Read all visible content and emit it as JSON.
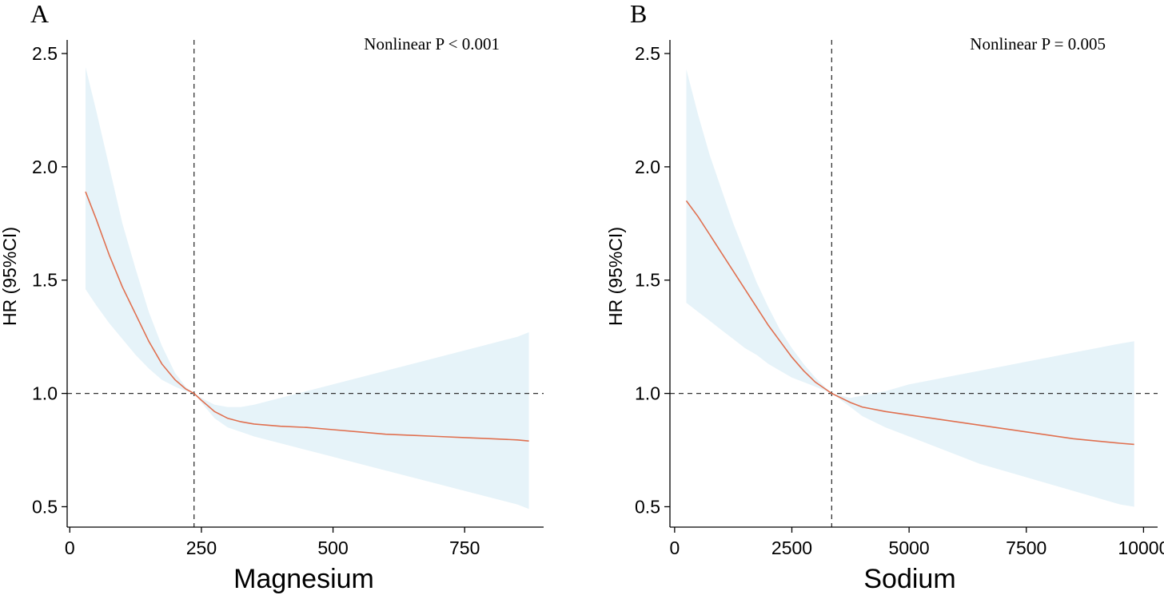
{
  "chart_data": [
    {
      "panel_label": "A",
      "type": "line",
      "annotation": "Nonlinear P < 0.001",
      "xlabel": "Magnesium",
      "ylabel": "HR (95%CI)",
      "xlim": [
        -5,
        900
      ],
      "ylim": [
        0.41,
        2.56
      ],
      "xticks": [
        0,
        250,
        500,
        750
      ],
      "xtick_labels": [
        "0",
        "250",
        "500",
        "750"
      ],
      "yticks": [
        0.5,
        1.0,
        1.5,
        2.0,
        2.5
      ],
      "ytick_labels": [
        "0.5",
        "1.0",
        "1.5",
        "2.0",
        "2.5"
      ],
      "reference_x": 236,
      "reference_y": 1.0,
      "grid": false,
      "colors": {
        "line": "#e07050",
        "band": "#e6f3f9",
        "refline": "#333333",
        "axis": "#000000"
      },
      "series": [
        {
          "x": [
            30,
            50,
            75,
            100,
            125,
            150,
            175,
            200,
            220,
            236,
            250,
            275,
            300,
            325,
            350,
            400,
            450,
            500,
            550,
            600,
            650,
            700,
            750,
            800,
            850,
            872
          ],
          "y": [
            1.89,
            1.77,
            1.61,
            1.47,
            1.35,
            1.23,
            1.13,
            1.06,
            1.02,
            1.0,
            0.97,
            0.92,
            0.89,
            0.875,
            0.865,
            0.855,
            0.85,
            0.84,
            0.83,
            0.82,
            0.815,
            0.81,
            0.805,
            0.8,
            0.795,
            0.79
          ],
          "lower": [
            1.46,
            1.39,
            1.31,
            1.24,
            1.17,
            1.11,
            1.06,
            1.03,
            1.01,
            1.0,
            0.96,
            0.89,
            0.85,
            0.83,
            0.81,
            0.78,
            0.75,
            0.72,
            0.69,
            0.66,
            0.63,
            0.6,
            0.57,
            0.54,
            0.51,
            0.49
          ],
          "upper": [
            2.44,
            2.25,
            2.0,
            1.75,
            1.55,
            1.36,
            1.21,
            1.09,
            1.03,
            1.0,
            0.98,
            0.95,
            0.94,
            0.94,
            0.95,
            0.98,
            1.01,
            1.04,
            1.07,
            1.1,
            1.13,
            1.16,
            1.19,
            1.22,
            1.25,
            1.27
          ]
        }
      ]
    },
    {
      "panel_label": "B",
      "type": "line",
      "annotation": "Nonlinear P = 0.005",
      "xlabel": "Sodium",
      "ylabel": "HR (95%CI)",
      "xlim": [
        -100,
        10300
      ],
      "ylim": [
        0.41,
        2.56
      ],
      "xticks": [
        0,
        2500,
        5000,
        7500,
        10000
      ],
      "xtick_labels": [
        "0",
        "2500",
        "5000",
        "7500",
        "10000"
      ],
      "yticks": [
        0.5,
        1.0,
        1.5,
        2.0,
        2.5
      ],
      "ytick_labels": [
        "0.5",
        "1.0",
        "1.5",
        "2.0",
        "2.5"
      ],
      "reference_x": 3350,
      "reference_y": 1.0,
      "grid": false,
      "colors": {
        "line": "#e07050",
        "band": "#e6f3f9",
        "refline": "#333333",
        "axis": "#000000"
      },
      "series": [
        {
          "x": [
            250,
            500,
            750,
            1000,
            1250,
            1500,
            1750,
            2000,
            2250,
            2500,
            2750,
            3000,
            3350,
            3750,
            4000,
            4500,
            5000,
            5500,
            6000,
            6500,
            7000,
            7500,
            8000,
            8500,
            9000,
            9500,
            9800
          ],
          "y": [
            1.85,
            1.78,
            1.7,
            1.62,
            1.54,
            1.46,
            1.38,
            1.3,
            1.23,
            1.16,
            1.1,
            1.05,
            1.0,
            0.96,
            0.94,
            0.92,
            0.905,
            0.89,
            0.875,
            0.86,
            0.845,
            0.83,
            0.815,
            0.8,
            0.79,
            0.78,
            0.775
          ],
          "lower": [
            1.4,
            1.36,
            1.32,
            1.28,
            1.24,
            1.2,
            1.17,
            1.13,
            1.1,
            1.07,
            1.05,
            1.03,
            1.0,
            0.94,
            0.9,
            0.85,
            0.81,
            0.77,
            0.73,
            0.69,
            0.66,
            0.63,
            0.6,
            0.57,
            0.54,
            0.51,
            0.5
          ],
          "upper": [
            2.43,
            2.23,
            2.05,
            1.9,
            1.75,
            1.62,
            1.49,
            1.38,
            1.28,
            1.2,
            1.13,
            1.07,
            1.0,
            0.98,
            0.99,
            1.01,
            1.04,
            1.06,
            1.08,
            1.1,
            1.12,
            1.14,
            1.16,
            1.18,
            1.2,
            1.22,
            1.23
          ]
        }
      ]
    }
  ]
}
